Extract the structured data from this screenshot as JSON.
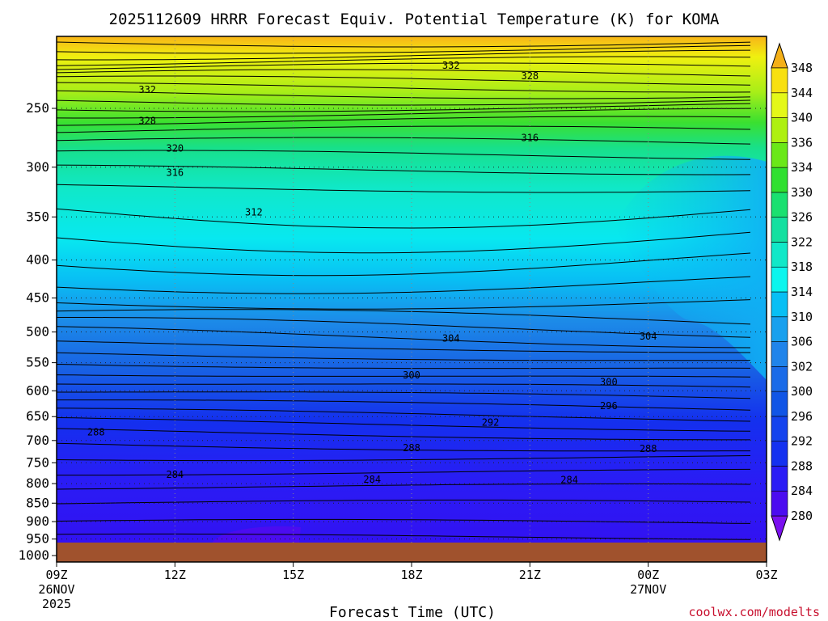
{
  "chart_data": {
    "type": "heatmap",
    "title": "2025112609 HRRR Forecast Equiv. Potential Temperature (K) for KOMA",
    "xlabel": "Forecast Time (UTC)",
    "ylabel": "",
    "credit": "coolwx.com/modelts",
    "x_ticks": [
      {
        "hour": 0,
        "label": "09Z",
        "date": "26NOV",
        "year": "2025"
      },
      {
        "hour": 3,
        "label": "12Z"
      },
      {
        "hour": 6,
        "label": "15Z"
      },
      {
        "hour": 9,
        "label": "18Z"
      },
      {
        "hour": 12,
        "label": "21Z"
      },
      {
        "hour": 15,
        "label": "00Z",
        "date": "27NOV"
      },
      {
        "hour": 18,
        "label": "03Z"
      }
    ],
    "xlim": [
      0,
      18
    ],
    "y_ticks": [
      "250",
      "300",
      "350",
      "400",
      "450",
      "500",
      "550",
      "600",
      "650",
      "700",
      "750",
      "800",
      "850",
      "900",
      "950",
      "1000"
    ],
    "ylim_hpa": [
      200,
      1020
    ],
    "surface_pressure_hpa": 985,
    "colorbar": {
      "levels": [
        "280",
        "284",
        "288",
        "292",
        "296",
        "300",
        "302",
        "306",
        "310",
        "314",
        "318",
        "322",
        "326",
        "330",
        "334",
        "336",
        "340",
        "344",
        "348"
      ],
      "colors": [
        "#4b0cf0",
        "#2a1cf5",
        "#1431f0",
        "#1443ee",
        "#1055e6",
        "#1a6be8",
        "#2084ea",
        "#18a0ee",
        "#08bff4",
        "#0cf5ee",
        "#10e8c8",
        "#14e0a0",
        "#1ae070",
        "#30e030",
        "#6ae818",
        "#aef010",
        "#e4f818",
        "#f8e010",
        "#f4b018"
      ]
    },
    "contour_labels": [
      {
        "text": "332",
        "hour": 2.3,
        "p": 236
      },
      {
        "text": "328",
        "hour": 2.3,
        "p": 260
      },
      {
        "text": "320",
        "hour": 3.0,
        "p": 283
      },
      {
        "text": "316",
        "hour": 3.0,
        "p": 305
      },
      {
        "text": "312",
        "hour": 5.0,
        "p": 345
      },
      {
        "text": "332",
        "hour": 10.0,
        "p": 219
      },
      {
        "text": "328",
        "hour": 12.0,
        "p": 226
      },
      {
        "text": "316",
        "hour": 12.0,
        "p": 274
      },
      {
        "text": "304",
        "hour": 10.0,
        "p": 510
      },
      {
        "text": "300",
        "hour": 9.0,
        "p": 572
      },
      {
        "text": "292",
        "hour": 11.0,
        "p": 662
      },
      {
        "text": "288",
        "hour": 1.0,
        "p": 682
      },
      {
        "text": "288",
        "hour": 9.0,
        "p": 716
      },
      {
        "text": "284",
        "hour": 3.0,
        "p": 778
      },
      {
        "text": "284",
        "hour": 8.0,
        "p": 790
      },
      {
        "text": "284",
        "hour": 13.0,
        "p": 791
      },
      {
        "text": "300",
        "hour": 14.0,
        "p": 584
      },
      {
        "text": "296",
        "hour": 14.0,
        "p": 629
      },
      {
        "text": "304",
        "hour": 15.0,
        "p": 507
      },
      {
        "text": "288",
        "hour": 15.0,
        "p": 718
      }
    ]
  }
}
